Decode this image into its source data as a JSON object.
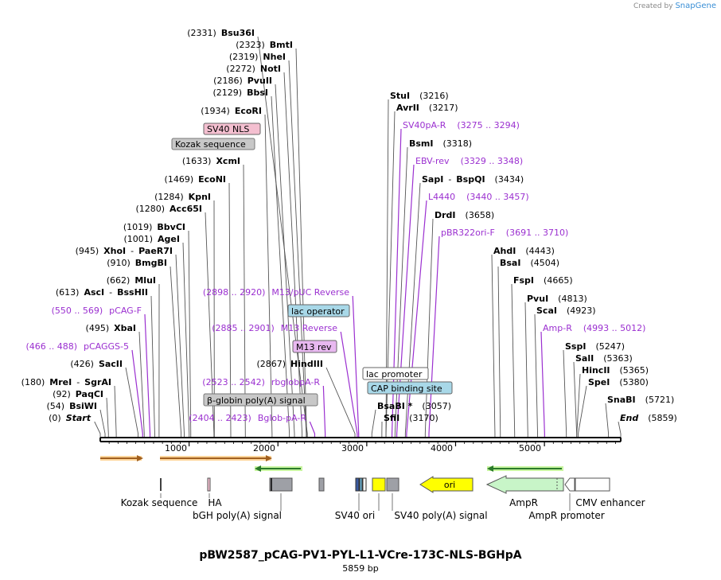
{
  "branding": {
    "created_by": "Created by",
    "product": "SnapGene"
  },
  "plasmid": {
    "name": "pBW2587_pCAG-PV1-PYL-L1-VCre-173C-NLS-BGHpA",
    "size_label": "5859 bp",
    "length": 5859
  },
  "colors": {
    "enzyme": "#000000",
    "primer": "#9b30d0",
    "line": "#555555"
  },
  "ruler": [
    "1000",
    "2000",
    "3000",
    "4000",
    "5000"
  ],
  "enzymes": [
    {
      "pos": "(2331)",
      "name": "Bsu36I",
      "cut": 2331
    },
    {
      "pos": "(2323)",
      "name": "BmtI",
      "cut": 2323
    },
    {
      "pos": "(2319)",
      "name": "NheI",
      "cut": 2319
    },
    {
      "pos": "(2272)",
      "name": "NotI",
      "cut": 2272
    },
    {
      "pos": "(2186)",
      "name": "PvuII",
      "cut": 2186
    },
    {
      "pos": "(2129)",
      "name": "BbsI",
      "cut": 2129
    },
    {
      "pos": "(1934)",
      "name": "EcoRI",
      "cut": 1934
    },
    {
      "pos": "(1633)",
      "name": "XcmI",
      "cut": 1633
    },
    {
      "pos": "(1469)",
      "name": "EcoNI",
      "cut": 1469
    },
    {
      "pos": "(1284)",
      "name": "KpnI",
      "cut": 1284
    },
    {
      "pos": "(1280)",
      "name": "Acc65I",
      "cut": 1280
    },
    {
      "pos": "(1019)",
      "name": "BbvCI",
      "cut": 1019
    },
    {
      "pos": "(1001)",
      "name": "AgeI",
      "cut": 1001
    },
    {
      "pos": "(945)",
      "name": "XhoI",
      "name2": "PaeR7I",
      "cut": 945
    },
    {
      "pos": "(910)",
      "name": "BmgBI",
      "cut": 910
    },
    {
      "pos": "(662)",
      "name": "MluI",
      "cut": 662
    },
    {
      "pos": "(613)",
      "name": "AscI",
      "name2": "BssHII",
      "cut": 613
    },
    {
      "pos": "(495)",
      "name": "XbaI",
      "cut": 495
    },
    {
      "pos": "(426)",
      "name": "SacII",
      "cut": 426
    },
    {
      "pos": "(180)",
      "name": "MreI",
      "name2": "SgrAI",
      "cut": 180
    },
    {
      "pos": "(92)",
      "name": "PaqCI",
      "cut": 92
    },
    {
      "pos": "(54)",
      "name": "BsiWI",
      "cut": 54
    },
    {
      "pos": "(0)",
      "name": "Start",
      "cut": 0,
      "italic": true
    },
    {
      "pos": "(2867)",
      "name": "HindIII",
      "cut": 2867
    },
    {
      "pos": "(3216)",
      "name": "StuI",
      "cut": 3216
    },
    {
      "pos": "(3217)",
      "name": "AvrII",
      "cut": 3217
    },
    {
      "pos": "(3318)",
      "name": "BsmI",
      "cut": 3318
    },
    {
      "pos": "(3434)",
      "name": "SapI",
      "name2": "BspQI",
      "cut": 3434
    },
    {
      "pos": "(3658)",
      "name": "DrdI",
      "cut": 3658
    },
    {
      "pos": "(3057)",
      "name": "BsaBI *",
      "cut": 3057
    },
    {
      "pos": "(3170)",
      "name": "SfiI",
      "cut": 3170
    },
    {
      "pos": "(4443)",
      "name": "AhdI",
      "cut": 4443
    },
    {
      "pos": "(4504)",
      "name": "BsaI",
      "cut": 4504
    },
    {
      "pos": "(4665)",
      "name": "FspI",
      "cut": 4665
    },
    {
      "pos": "(4813)",
      "name": "PvuI",
      "cut": 4813
    },
    {
      "pos": "(4923)",
      "name": "ScaI",
      "cut": 4923
    },
    {
      "pos": "(5247)",
      "name": "SspI",
      "cut": 5247
    },
    {
      "pos": "(5363)",
      "name": "SalI",
      "cut": 5363
    },
    {
      "pos": "(5365)",
      "name": "HincII",
      "cut": 5365
    },
    {
      "pos": "(5380)",
      "name": "SpeI",
      "cut": 5380
    },
    {
      "pos": "(5721)",
      "name": "SnaBI",
      "cut": 5721
    },
    {
      "pos": "(5859)",
      "name": "End",
      "cut": 5859,
      "italic": true
    }
  ],
  "primers": [
    {
      "name": "pCAG-F",
      "range": "(550 .. 569)",
      "cut": 560
    },
    {
      "name": "pCAGGS-5",
      "range": "(466 .. 488)",
      "cut": 477
    },
    {
      "name": "Bglob-pA-R",
      "range": "(2404 .. 2423)",
      "cut": 2414
    },
    {
      "name": "rbglobpA-R",
      "range": "(2523 .. 2542)",
      "cut": 2532
    },
    {
      "name": "M13 Reverse",
      "range": "(2885 .. 2901)",
      "cut": 2893
    },
    {
      "name": "M13/pUC Reverse",
      "range": "(2898 .. 2920)",
      "cut": 2909
    },
    {
      "name": "SV40pA-R",
      "range": "(3275 .. 3294)",
      "cut": 3284
    },
    {
      "name": "EBV-rev",
      "range": "(3329 .. 3348)",
      "cut": 3338
    },
    {
      "name": "L4440",
      "range": "(3440 .. 3457)",
      "cut": 3448
    },
    {
      "name": "pBR322ori-F",
      "range": "(3691 .. 3710)",
      "cut": 3700
    },
    {
      "name": "Amp-R",
      "range": "(4993 .. 5012)",
      "cut": 5002
    }
  ],
  "boxed_features": [
    {
      "name": "SV40 NLS",
      "fill": "#f4bfd0"
    },
    {
      "name": "Kozak sequence",
      "fill": "#c8c8c8"
    },
    {
      "name": "lac operator",
      "fill": "#a8d8e8"
    },
    {
      "name": "M13 rev",
      "fill": "#e8b8f0"
    },
    {
      "name": "β-globin poly(A) signal",
      "fill": "#c8c8c8"
    },
    {
      "name": "lac promoter",
      "fill": "#ffffff"
    },
    {
      "name": "CAP binding site",
      "fill": "#a8d8e8"
    }
  ],
  "bottom_features": [
    {
      "name": "Kozak sequence"
    },
    {
      "name": "HA"
    },
    {
      "name": "bGH poly(A) signal"
    },
    {
      "name": "SV40 ori"
    },
    {
      "name": "SV40 poly(A) signal"
    },
    {
      "name": "ori",
      "fill": "#ffff00"
    },
    {
      "name": "AmpR",
      "fill": "#c8f5c8"
    },
    {
      "name": "AmpR promoter"
    },
    {
      "name": "CMV enhancer",
      "fill": "#ffffff"
    }
  ]
}
